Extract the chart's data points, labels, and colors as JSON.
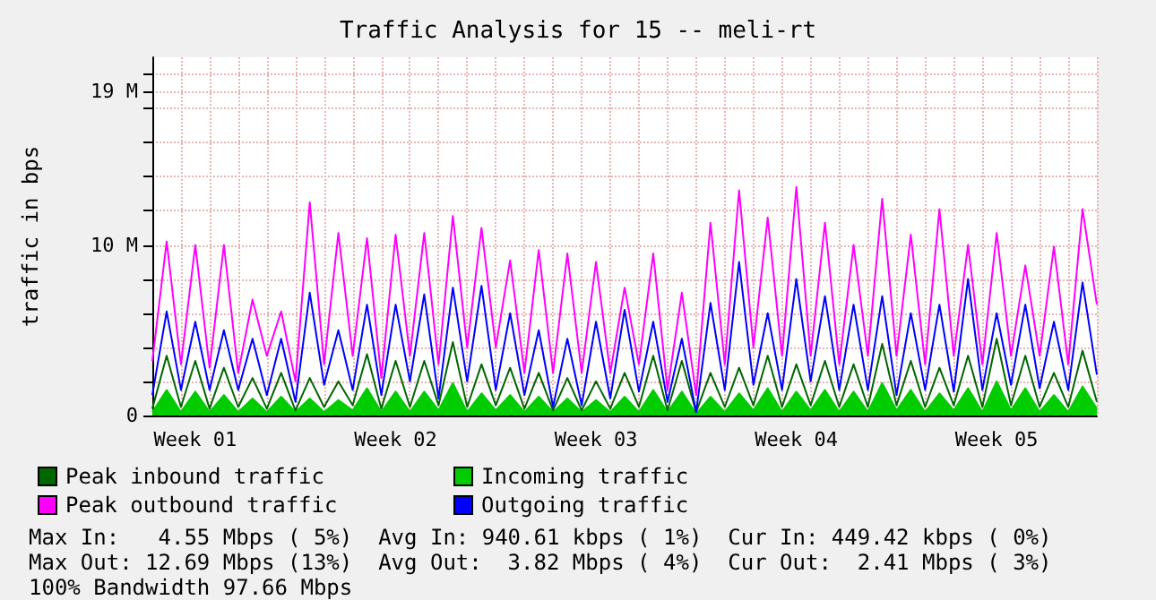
{
  "chart_data": {
    "type": "line",
    "title": "Traffic Analysis for 15 -- meli-rt",
    "ylabel": "traffic in bps",
    "categories": [
      null,
      null,
      null,
      "Week 01",
      null,
      null,
      null,
      null,
      null,
      null,
      null,
      null,
      null,
      null,
      null,
      null,
      null,
      "Week 02",
      null,
      null,
      null,
      null,
      null,
      null,
      null,
      null,
      null,
      null,
      null,
      null,
      null,
      "Week 03",
      null,
      null,
      null,
      null,
      null,
      null,
      null,
      null,
      null,
      null,
      null,
      null,
      null,
      "Week 04",
      null,
      null,
      null,
      null,
      null,
      null,
      null,
      null,
      null,
      null,
      null,
      null,
      null,
      "Week 05",
      null,
      null,
      null,
      null,
      null,
      null,
      null
    ],
    "ylim": [
      0,
      21
    ],
    "yticks": [
      0,
      {
        "value": 2,
        "label": null
      },
      {
        "value": 4,
        "label": null
      },
      {
        "value": 6,
        "label": null
      },
      {
        "value": 8,
        "label": null
      },
      {
        "value": 10,
        "label": "10 M"
      },
      {
        "value": 12,
        "label": null
      },
      {
        "value": 14,
        "label": null
      },
      {
        "value": 16,
        "label": null
      },
      {
        "value": 18,
        "label": null
      },
      {
        "value": 19,
        "label": "19 M"
      },
      {
        "value": 20,
        "label": null
      }
    ],
    "series": [
      {
        "name": "Peak inbound traffic",
        "color": "#006600",
        "values": [
          0.4,
          3.5,
          0.5,
          3.2,
          0.4,
          2.8,
          0.5,
          2.2,
          0.4,
          2.5,
          0.3,
          2.2,
          0.5,
          2,
          0.6,
          3.6,
          0.4,
          3.2,
          0.5,
          3.2,
          0.6,
          4.3,
          0.5,
          3,
          0.6,
          2.8,
          0.4,
          2.5,
          0.3,
          2.2,
          0.3,
          2,
          0.4,
          2.5,
          0.5,
          3.5,
          0.3,
          3.2,
          0.2,
          2.5,
          0.5,
          2.8,
          0.6,
          3.5,
          0.5,
          3,
          0.6,
          3.2,
          0.5,
          3,
          0.5,
          4.2,
          0.6,
          3.2,
          0.5,
          2.8,
          0.6,
          3.5,
          0.5,
          4.5,
          0.6,
          3.5,
          0.5,
          2.5,
          0.5,
          3.8,
          0.8
        ]
      },
      {
        "name": "Incoming traffic",
        "type": "area",
        "color": "#00cc00",
        "values": [
          0.2,
          1.5,
          0.2,
          1.4,
          0.2,
          1.2,
          0.2,
          1,
          0.2,
          1.1,
          0.2,
          1,
          0.2,
          0.9,
          0.3,
          1.6,
          0.2,
          1.4,
          0.2,
          1.4,
          0.3,
          1.9,
          0.2,
          1.3,
          0.3,
          1.2,
          0.2,
          1.1,
          0.2,
          1,
          0.2,
          0.9,
          0.2,
          1.1,
          0.2,
          1.5,
          0.2,
          1.4,
          0.1,
          1.1,
          0.2,
          1.3,
          0.3,
          1.6,
          0.2,
          1.4,
          0.3,
          1.5,
          0.2,
          1.4,
          0.2,
          1.9,
          0.3,
          1.5,
          0.2,
          1.3,
          0.3,
          1.6,
          0.2,
          2,
          0.3,
          1.6,
          0.2,
          1.2,
          0.2,
          1.7,
          0.4
        ]
      },
      {
        "name": "Peak outbound traffic",
        "color": "#ff00ff",
        "values": [
          3.2,
          10.2,
          3,
          10,
          2.8,
          10,
          2.5,
          6.8,
          3.5,
          6.1,
          2,
          12.5,
          3,
          10.7,
          3.5,
          10.4,
          2.2,
          10.6,
          3.5,
          10.7,
          3,
          11.7,
          4,
          11,
          4,
          9.1,
          2.5,
          9.7,
          2.5,
          9.5,
          2.5,
          9,
          2.5,
          7.5,
          3,
          9.5,
          1.5,
          7.2,
          1.2,
          11.3,
          3,
          13.2,
          4,
          11.6,
          3.5,
          13.4,
          3.5,
          11.3,
          3,
          10,
          3.5,
          12.7,
          3.5,
          10.6,
          3,
          12.1,
          3.5,
          10,
          3,
          10.7,
          3.5,
          8.8,
          3.5,
          9.9,
          3,
          12.1,
          6.5
        ]
      },
      {
        "name": "Outgoing traffic",
        "color": "#0000ff",
        "values": [
          1.2,
          6.1,
          1.5,
          5.5,
          1.5,
          5,
          1.5,
          4.5,
          1.2,
          4.5,
          0.8,
          7.2,
          1.8,
          5,
          1.5,
          6.5,
          1.2,
          6.5,
          2,
          7.1,
          1,
          7.5,
          2,
          7.6,
          1.5,
          6,
          1.2,
          5,
          0.5,
          4.5,
          0.6,
          5.5,
          1,
          6.2,
          1.4,
          5.5,
          0.8,
          4.5,
          0.2,
          6.6,
          1.5,
          9,
          1.8,
          6,
          1.5,
          8,
          2,
          7,
          1.5,
          6.5,
          1.5,
          7,
          1.2,
          6,
          1.5,
          6.5,
          1.4,
          8,
          1.5,
          6,
          1.8,
          6.5,
          1.6,
          5.5,
          1.5,
          7.8,
          2.4
        ]
      }
    ],
    "marker": "none",
    "grid": true,
    "legend": "bottom",
    "annotations": [
      "Max In:   4.55 Mbps ( 5%)  Avg In: 940.61 kbps ( 1%)  Cur In: 449.42 kbps ( 0%)",
      "Max Out: 12.69 Mbps (13%)  Avg Out:  3.82 Mbps ( 4%)  Cur Out:  2.41 Mbps ( 3%)",
      "100% Bandwidth 97.66 Mbps"
    ]
  }
}
